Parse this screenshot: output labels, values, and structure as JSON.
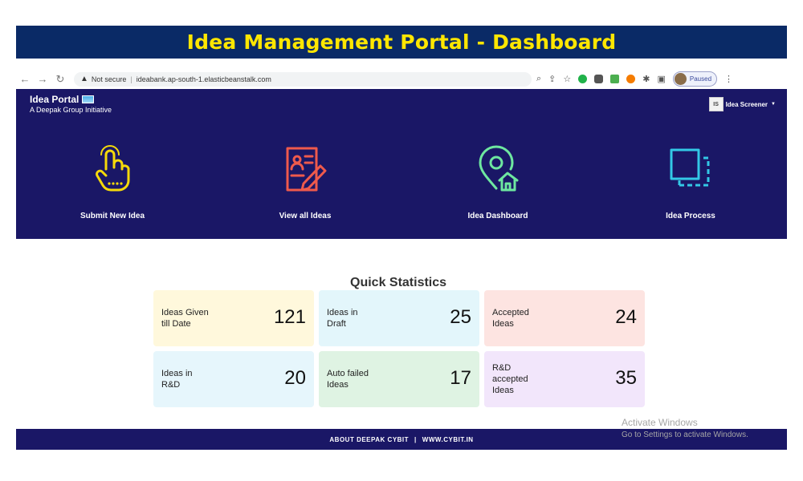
{
  "banner": {
    "title": "Idea Management Portal - Dashboard"
  },
  "browser": {
    "security": "Not secure",
    "url": "ideabank.ap-south-1.elasticbeanstalk.com",
    "profile_status": "Paused"
  },
  "header": {
    "brand_title": "Idea Portal",
    "brand_subtitle": "A Deepak Group Initiative",
    "user_initials": "IS",
    "user_name": "Idea Screener"
  },
  "tiles": [
    {
      "label": "Submit New Idea",
      "icon": "hand-pointer-icon",
      "color": "#f5d90a"
    },
    {
      "label": "View all Ideas",
      "icon": "document-edit-icon",
      "color": "#ef5a4c"
    },
    {
      "label": "Idea Dashboard",
      "icon": "location-home-icon",
      "color": "#6ee7a0"
    },
    {
      "label": "Idea Process",
      "icon": "frame-expand-icon",
      "color": "#33c8e6"
    }
  ],
  "stats": {
    "title": "Quick Statistics",
    "cards": [
      {
        "label_lines": [
          "Ideas Given",
          "till Date"
        ],
        "value": "121",
        "color": "#fff8dc"
      },
      {
        "label_lines": [
          "Ideas in",
          "Draft"
        ],
        "value": "25",
        "color": "#e3f6fb"
      },
      {
        "label_lines": [
          "Accepted",
          "Ideas"
        ],
        "value": "24",
        "color": "#fde4e1"
      },
      {
        "label_lines": [
          "Ideas in",
          "R&D"
        ],
        "value": "20",
        "color": "#e6f6fc"
      },
      {
        "label_lines": [
          "Auto failed",
          "Ideas"
        ],
        "value": "17",
        "color": "#dff3e3"
      },
      {
        "label_lines": [
          "R&D",
          "accepted",
          "Ideas"
        ],
        "value": "35",
        "color": "#f2e6fb"
      }
    ]
  },
  "footer": {
    "about": "ABOUT DEEPAK CYBIT",
    "site": "WWW.CYBIT.IN"
  },
  "watermark": {
    "line1": "Activate Windows",
    "line2": "Go to Settings to activate Windows."
  },
  "colors": {
    "header_bg": "#1a1766",
    "banner_bg": "#0a2a66",
    "banner_text": "#ffe600"
  }
}
